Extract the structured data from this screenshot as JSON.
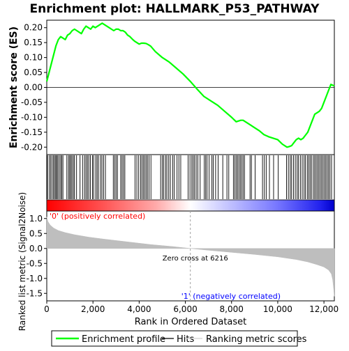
{
  "chart_data": {
    "type": "line",
    "title": "Enrichment plot: HALLMARK_P53_PATHWAY",
    "colors": {
      "enrichment_line": "#00ff00",
      "hits": "#000000",
      "ranked_fill": "#bebebe",
      "positive_text": "#ff0000",
      "negative_text": "#0000ff",
      "zero_cross_line": "#a0a0a0",
      "frame": "#000000"
    },
    "top_panel": {
      "ylabel": "Enrichment score (ES)",
      "ylim": [
        -0.225,
        0.225
      ],
      "yticks": [
        "0.20",
        "0.15",
        "0.10",
        "0.05",
        "0.00",
        "-0.05",
        "-0.10",
        "-0.15",
        "-0.20"
      ],
      "ytick_values": [
        0.2,
        0.15,
        0.1,
        0.05,
        0.0,
        -0.05,
        -0.1,
        -0.15,
        -0.2
      ],
      "enrichment_profile": {
        "x": [
          0,
          100,
          200,
          300,
          400,
          500,
          600,
          700,
          800,
          900,
          1000,
          1100,
          1200,
          1300,
          1400,
          1500,
          1600,
          1700,
          1800,
          1900,
          2000,
          2100,
          2200,
          2300,
          2400,
          2500,
          2600,
          2700,
          2800,
          2900,
          3000,
          3100,
          3200,
          3300,
          3400,
          3500,
          3600,
          3700,
          3800,
          3900,
          4000,
          4100,
          4200,
          4300,
          4400,
          4500,
          4700,
          5000,
          5300,
          5600,
          5900,
          6216,
          6500,
          6800,
          7100,
          7400,
          7700,
          8000,
          8200,
          8400,
          8500,
          8600,
          8800,
          9000,
          9200,
          9400,
          9600,
          9800,
          10000,
          10200,
          10400,
          10500,
          10600,
          10700,
          10800,
          10900,
          11000,
          11100,
          11200,
          11300,
          11400,
          11500,
          11600,
          11700,
          11800,
          11900,
          12000,
          12100,
          12200,
          12300,
          12450
        ],
        "y": [
          0.02,
          0.05,
          0.08,
          0.11,
          0.14,
          0.16,
          0.17,
          0.165,
          0.16,
          0.175,
          0.18,
          0.19,
          0.195,
          0.19,
          0.185,
          0.18,
          0.195,
          0.205,
          0.2,
          0.195,
          0.205,
          0.2,
          0.205,
          0.21,
          0.215,
          0.21,
          0.205,
          0.2,
          0.195,
          0.19,
          0.195,
          0.195,
          0.19,
          0.19,
          0.185,
          0.175,
          0.17,
          0.162,
          0.155,
          0.15,
          0.145,
          0.148,
          0.148,
          0.147,
          0.143,
          0.138,
          0.12,
          0.1,
          0.085,
          0.065,
          0.045,
          0.02,
          -0.005,
          -0.03,
          -0.045,
          -0.06,
          -0.08,
          -0.1,
          -0.115,
          -0.11,
          -0.11,
          -0.115,
          -0.125,
          -0.135,
          -0.145,
          -0.158,
          -0.165,
          -0.17,
          -0.175,
          -0.19,
          -0.2,
          -0.198,
          -0.195,
          -0.185,
          -0.175,
          -0.17,
          -0.175,
          -0.17,
          -0.16,
          -0.15,
          -0.13,
          -0.11,
          -0.09,
          -0.085,
          -0.08,
          -0.07,
          -0.05,
          -0.03,
          -0.01,
          0.01,
          0.005
        ]
      }
    },
    "hits_panel": {
      "hit_positions": [
        30,
        110,
        170,
        230,
        290,
        340,
        390,
        430,
        480,
        540,
        600,
        650,
        700,
        870,
        940,
        990,
        1040,
        1090,
        1150,
        1200,
        1290,
        1440,
        1560,
        1640,
        1700,
        1760,
        1820,
        1890,
        1980,
        2030,
        2120,
        2180,
        2240,
        2330,
        2390,
        2460,
        2540,
        2880,
        2940,
        3000,
        3060,
        3200,
        3260,
        3320,
        3380,
        3820,
        3900,
        3980,
        4060,
        4120,
        4180,
        4240,
        4300,
        4360,
        4430,
        4510,
        4930,
        5000,
        5060,
        5140,
        5200,
        5280,
        5350,
        5450,
        5520,
        5640,
        5720,
        5800,
        6120,
        6200,
        6280,
        6340,
        6400,
        6470,
        6540,
        6640,
        6820,
        6880,
        6940,
        7030,
        7150,
        7210,
        7310,
        7420,
        7620,
        7800,
        7880,
        8080,
        8140,
        8200,
        8260,
        8320,
        8380,
        8440,
        8500,
        8560,
        8800,
        8860,
        9020,
        9340,
        9420,
        9500,
        9640,
        9820,
        10020,
        10380,
        10460,
        10540,
        10600,
        10680,
        10760,
        10840,
        10900,
        10980,
        11060,
        11140,
        11200,
        11280,
        11340,
        11400,
        11460,
        11540,
        11600,
        11660,
        11720,
        11780,
        11840,
        11900,
        11960,
        12020,
        12080,
        12140,
        12200,
        12260,
        12330
      ]
    },
    "bottom_panel": {
      "ylabel": "Ranked list metric (Signal2Noise)",
      "xlabel": "Rank in Ordered Dataset",
      "ylim": [
        -1.75,
        1.25
      ],
      "yticks": [
        "1.0",
        "0.5",
        "0.0",
        "-0.5",
        "-1.0",
        "-1.5"
      ],
      "ytick_values": [
        1.0,
        0.5,
        0.0,
        -0.5,
        -1.0,
        -1.5
      ],
      "xlim": [
        0,
        12450
      ],
      "xticks": [
        "0",
        "2,000",
        "4,000",
        "6,000",
        "8,000",
        "10,000",
        "12,000"
      ],
      "xtick_values": [
        0,
        2000,
        4000,
        6000,
        8000,
        10000,
        12000
      ],
      "ranked_metric": {
        "x": [
          0,
          50,
          150,
          300,
          500,
          800,
          1200,
          1800,
          2500,
          3500,
          4500,
          5500,
          6216,
          7000,
          8000,
          9000,
          10000,
          10800,
          11300,
          11700,
          12000,
          12200,
          12320,
          12380,
          12420,
          12450
        ],
        "y": [
          1.05,
          0.9,
          0.78,
          0.68,
          0.6,
          0.53,
          0.46,
          0.38,
          0.31,
          0.22,
          0.13,
          0.06,
          0.0,
          -0.06,
          -0.13,
          -0.2,
          -0.28,
          -0.37,
          -0.45,
          -0.54,
          -0.62,
          -0.72,
          -0.85,
          -1.05,
          -1.35,
          -1.6
        ]
      },
      "positive_label": "'0' (positively correlated)",
      "negative_label": "'1' (negatively correlated)",
      "zero_cross_label": "Zero cross at 6216",
      "zero_cross_at": 6216
    },
    "legend": {
      "placement": "bottom",
      "items": [
        {
          "label": "Enrichment profile",
          "kind": "green-line"
        },
        {
          "label": "Hits",
          "kind": "black-line"
        },
        {
          "label": "Ranking metric scores",
          "kind": "gray-line"
        }
      ]
    }
  }
}
